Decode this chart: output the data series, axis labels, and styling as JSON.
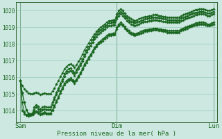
{
  "background_color": "#cce8e0",
  "grid_color": "#99ccbb",
  "line_color": "#1a6620",
  "marker_color": "#1a6620",
  "title": "Pression niveau de la mer( hPa )",
  "ylim": [
    1013.3,
    1020.5
  ],
  "yticks": [
    1014,
    1015,
    1016,
    1017,
    1018,
    1019,
    1020
  ],
  "xtick_labels": [
    "Sam",
    "Dim",
    "Lun"
  ],
  "xtick_positions": [
    0,
    48,
    96
  ],
  "total_points": 97,
  "series": [
    [
      1015.8,
      1015.05,
      1014.5,
      1014.05,
      1013.8,
      1013.75,
      1013.75,
      1013.85,
      1013.9,
      1013.85,
      1013.75,
      1013.8,
      1013.85,
      1013.8,
      1013.8,
      1013.8,
      1014.0,
      1014.2,
      1014.5,
      1014.75,
      1015.05,
      1015.3,
      1015.55,
      1015.7,
      1015.8,
      1015.85,
      1015.75,
      1015.65,
      1015.8,
      1016.0,
      1016.2,
      1016.45,
      1016.7,
      1016.9,
      1017.1,
      1017.3,
      1017.5,
      1017.7,
      1017.85,
      1018.0,
      1018.1,
      1018.2,
      1018.3,
      1018.4,
      1018.5,
      1018.5,
      1018.55,
      1018.55,
      1018.9,
      1019.1,
      1019.2,
      1019.1,
      1018.95,
      1018.8,
      1018.7,
      1018.6,
      1018.55,
      1018.5,
      1018.55,
      1018.6,
      1018.65,
      1018.7,
      1018.75,
      1018.75,
      1018.8,
      1018.8,
      1018.85,
      1018.85,
      1018.85,
      1018.8,
      1018.8,
      1018.75,
      1018.75,
      1018.7,
      1018.7,
      1018.7,
      1018.7,
      1018.7,
      1018.7,
      1018.7,
      1018.8,
      1018.85,
      1018.9,
      1018.95,
      1019.0,
      1019.05,
      1019.1,
      1019.15,
      1019.15,
      1019.2,
      1019.2,
      1019.2,
      1019.15,
      1019.1,
      1019.1,
      1019.15,
      1019.2
    ],
    [
      1015.8,
      1015.1,
      1014.5,
      1014.05,
      1013.85,
      1013.8,
      1013.8,
      1013.9,
      1013.95,
      1013.9,
      1013.8,
      1013.85,
      1013.9,
      1013.85,
      1013.85,
      1013.85,
      1014.05,
      1014.3,
      1014.6,
      1014.85,
      1015.15,
      1015.4,
      1015.65,
      1015.8,
      1015.9,
      1015.95,
      1015.85,
      1015.75,
      1015.9,
      1016.1,
      1016.3,
      1016.55,
      1016.8,
      1017.0,
      1017.2,
      1017.4,
      1017.6,
      1017.8,
      1017.95,
      1018.1,
      1018.2,
      1018.3,
      1018.4,
      1018.5,
      1018.6,
      1018.6,
      1018.65,
      1018.65,
      1019.0,
      1019.2,
      1019.3,
      1019.2,
      1019.05,
      1018.9,
      1018.8,
      1018.7,
      1018.65,
      1018.6,
      1018.65,
      1018.7,
      1018.75,
      1018.8,
      1018.85,
      1018.85,
      1018.9,
      1018.9,
      1018.95,
      1018.95,
      1018.95,
      1018.9,
      1018.9,
      1018.85,
      1018.85,
      1018.8,
      1018.8,
      1018.8,
      1018.8,
      1018.8,
      1018.8,
      1018.8,
      1018.9,
      1018.95,
      1019.0,
      1019.05,
      1019.1,
      1019.15,
      1019.2,
      1019.25,
      1019.25,
      1019.3,
      1019.3,
      1019.3,
      1019.25,
      1019.2,
      1019.2,
      1019.25,
      1019.3
    ],
    [
      1015.8,
      1014.5,
      1013.9,
      1013.7,
      1013.65,
      1013.7,
      1013.75,
      1014.05,
      1014.2,
      1014.1,
      1013.95,
      1014.05,
      1014.1,
      1014.05,
      1014.05,
      1014.05,
      1014.35,
      1014.65,
      1014.95,
      1015.2,
      1015.5,
      1015.75,
      1016.05,
      1016.25,
      1016.35,
      1016.4,
      1016.25,
      1016.1,
      1016.3,
      1016.5,
      1016.7,
      1016.95,
      1017.25,
      1017.5,
      1017.7,
      1017.9,
      1018.1,
      1018.3,
      1018.45,
      1018.6,
      1018.7,
      1018.8,
      1018.9,
      1019.0,
      1019.1,
      1019.1,
      1019.15,
      1019.15,
      1019.5,
      1019.7,
      1019.8,
      1019.7,
      1019.55,
      1019.4,
      1019.3,
      1019.2,
      1019.15,
      1019.1,
      1019.15,
      1019.2,
      1019.25,
      1019.3,
      1019.35,
      1019.35,
      1019.4,
      1019.4,
      1019.45,
      1019.45,
      1019.45,
      1019.4,
      1019.4,
      1019.35,
      1019.35,
      1019.3,
      1019.3,
      1019.3,
      1019.3,
      1019.3,
      1019.3,
      1019.3,
      1019.4,
      1019.45,
      1019.5,
      1019.55,
      1019.6,
      1019.65,
      1019.7,
      1019.75,
      1019.75,
      1019.8,
      1019.8,
      1019.8,
      1019.75,
      1019.7,
      1019.7,
      1019.75,
      1019.8
    ],
    [
      1015.8,
      1014.0,
      1013.8,
      1013.75,
      1013.75,
      1013.8,
      1013.85,
      1014.2,
      1014.35,
      1014.25,
      1014.1,
      1014.2,
      1014.25,
      1014.2,
      1014.2,
      1014.2,
      1014.5,
      1014.8,
      1015.1,
      1015.35,
      1015.65,
      1015.9,
      1016.2,
      1016.4,
      1016.5,
      1016.55,
      1016.4,
      1016.25,
      1016.45,
      1016.65,
      1016.85,
      1017.1,
      1017.4,
      1017.65,
      1017.85,
      1018.05,
      1018.25,
      1018.45,
      1018.6,
      1018.75,
      1018.85,
      1018.95,
      1019.05,
      1019.15,
      1019.25,
      1019.25,
      1019.3,
      1019.3,
      1019.65,
      1019.85,
      1019.95,
      1019.85,
      1019.7,
      1019.55,
      1019.45,
      1019.35,
      1019.3,
      1019.25,
      1019.3,
      1019.35,
      1019.4,
      1019.45,
      1019.5,
      1019.5,
      1019.55,
      1019.55,
      1019.6,
      1019.6,
      1019.6,
      1019.55,
      1019.55,
      1019.5,
      1019.5,
      1019.45,
      1019.45,
      1019.45,
      1019.45,
      1019.45,
      1019.45,
      1019.45,
      1019.55,
      1019.6,
      1019.65,
      1019.7,
      1019.75,
      1019.8,
      1019.85,
      1019.9,
      1019.9,
      1019.95,
      1019.95,
      1019.95,
      1019.9,
      1019.85,
      1019.85,
      1019.9,
      1019.95
    ],
    [
      1015.8,
      1015.5,
      1015.3,
      1015.15,
      1015.05,
      1015.0,
      1015.0,
      1015.05,
      1015.1,
      1015.05,
      1014.95,
      1015.0,
      1015.05,
      1015.0,
      1015.0,
      1015.0,
      1015.15,
      1015.35,
      1015.6,
      1015.8,
      1016.05,
      1016.25,
      1016.5,
      1016.65,
      1016.75,
      1016.8,
      1016.7,
      1016.6,
      1016.75,
      1016.95,
      1017.15,
      1017.4,
      1017.65,
      1017.85,
      1018.05,
      1018.25,
      1018.45,
      1018.6,
      1018.75,
      1018.9,
      1019.0,
      1019.1,
      1019.2,
      1019.3,
      1019.4,
      1019.4,
      1019.45,
      1019.45,
      1019.8,
      1020.0,
      1020.1,
      1020.0,
      1019.85,
      1019.7,
      1019.6,
      1019.5,
      1019.45,
      1019.4,
      1019.45,
      1019.5,
      1019.55,
      1019.6,
      1019.65,
      1019.65,
      1019.7,
      1019.7,
      1019.75,
      1019.75,
      1019.75,
      1019.7,
      1019.7,
      1019.65,
      1019.65,
      1019.6,
      1019.6,
      1019.6,
      1019.6,
      1019.6,
      1019.6,
      1019.6,
      1019.7,
      1019.75,
      1019.8,
      1019.85,
      1019.9,
      1019.95,
      1020.0,
      1020.05,
      1020.05,
      1020.1,
      1020.1,
      1020.1,
      1020.05,
      1020.0,
      1020.0,
      1020.05,
      1020.1
    ]
  ]
}
